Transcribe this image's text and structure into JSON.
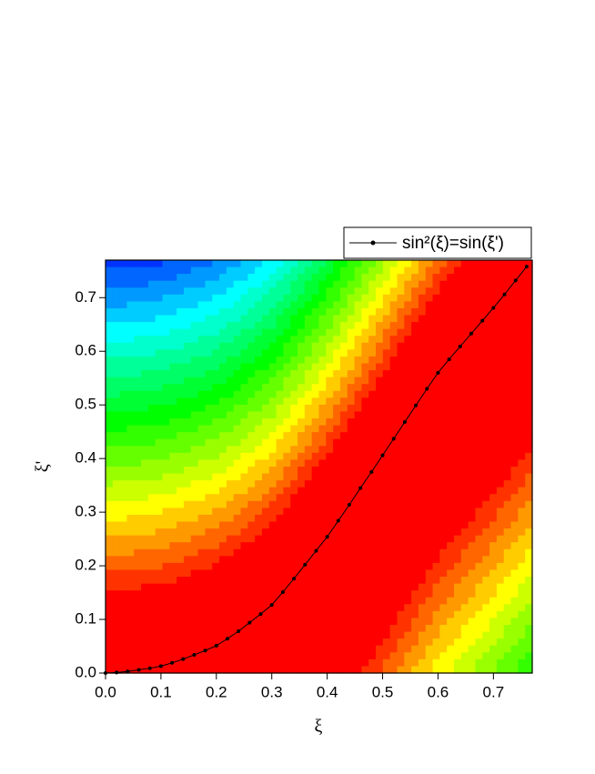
{
  "chart_data": {
    "type": "line",
    "x_label": "ξ",
    "y_label": "ξ'",
    "x": [
      0,
      0.02,
      0.04,
      0.06,
      0.08,
      0.1,
      0.12,
      0.14,
      0.16,
      0.18,
      0.2,
      0.22,
      0.24,
      0.26,
      0.28,
      0.3,
      0.32,
      0.34,
      0.36,
      0.38,
      0.4,
      0.42,
      0.44,
      0.46,
      0.48,
      0.5,
      0.52,
      0.54,
      0.56,
      0.58,
      0.6,
      0.62,
      0.64,
      0.66,
      0.68,
      0.7,
      0.72,
      0.74,
      0.76
    ],
    "series": [
      {
        "name": "sin²(ξ)=sin(ξ')",
        "color": "#000000",
        "values": [
          0,
          0.001,
          0.003,
          0.006,
          0.009,
          0.013,
          0.019,
          0.026,
          0.034,
          0.042,
          0.051,
          0.064,
          0.078,
          0.094,
          0.11,
          0.127,
          0.151,
          0.176,
          0.202,
          0.228,
          0.254,
          0.284,
          0.314,
          0.345,
          0.375,
          0.406,
          0.437,
          0.468,
          0.499,
          0.53,
          0.56,
          0.585,
          0.609,
          0.633,
          0.657,
          0.681,
          0.706,
          0.732,
          0.758
        ]
      }
    ],
    "xlim": [
      0,
      0.77
    ],
    "ylim": [
      0,
      0.77
    ],
    "xticks": [
      {
        "value": 0,
        "label": "0.0"
      },
      0.1,
      0.2,
      0.3,
      0.4,
      0.5,
      0.6,
      0.7
    ],
    "yticks": [
      {
        "value": 0,
        "label": "0.0"
      },
      0.1,
      0.2,
      0.3,
      0.4,
      0.5,
      0.6,
      0.7
    ],
    "legend": "top-right"
  }
}
